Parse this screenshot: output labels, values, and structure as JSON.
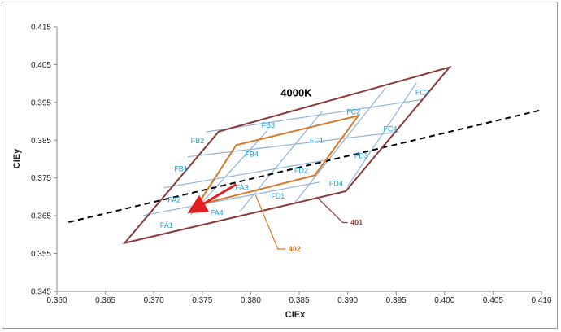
{
  "chart_data": {
    "type": "line",
    "title": "4000K",
    "xlabel": "CIEx",
    "ylabel": "CIEy",
    "xlim": [
      0.36,
      0.41
    ],
    "ylim": [
      0.345,
      0.415
    ],
    "x_ticks": [
      "0.360",
      "0.365",
      "0.370",
      "0.375",
      "0.380",
      "0.385",
      "0.390",
      "0.395",
      "0.400",
      "0.405",
      "0.410"
    ],
    "y_ticks": [
      "0.345",
      "0.355",
      "0.365",
      "0.375",
      "0.385",
      "0.395",
      "0.405",
      "0.415"
    ],
    "grid": false,
    "colors": {
      "outer": "#8b3a3a",
      "inner": "#d9782a",
      "bins": "#8fb3d9",
      "bin_text": "#1aa0d8",
      "planckian": "#000000",
      "arrow": "#e02020"
    },
    "outer_region": {
      "label": "401",
      "points": [
        [
          0.367,
          0.3578
        ],
        [
          0.3898,
          0.3715
        ],
        [
          0.4005,
          0.4043
        ],
        [
          0.3767,
          0.3873
        ]
      ]
    },
    "inner_region": {
      "label": "402",
      "points": [
        [
          0.3745,
          0.3678
        ],
        [
          0.3866,
          0.3757
        ],
        [
          0.3911,
          0.3915
        ],
        [
          0.3785,
          0.3837
        ]
      ]
    },
    "planckian_locus": {
      "points": [
        [
          0.3612,
          0.3633
        ],
        [
          0.41,
          0.393
        ]
      ]
    },
    "bin_lines": [
      [
        [
          0.3689,
          0.3651
        ],
        [
          0.3871,
          0.3739
        ]
      ],
      [
        [
          0.371,
          0.3724
        ],
        [
          0.3875,
          0.3796
        ]
      ],
      [
        [
          0.3735,
          0.3806
        ],
        [
          0.3953,
          0.3872
        ]
      ],
      [
        [
          0.3754,
          0.3872
        ],
        [
          0.3978,
          0.3958
        ]
      ],
      [
        [
          0.3738,
          0.3652
        ],
        [
          0.3817,
          0.3875
        ]
      ],
      [
        [
          0.3789,
          0.3662
        ],
        [
          0.3874,
          0.3927
        ]
      ],
      [
        [
          0.3844,
          0.368
        ],
        [
          0.3939,
          0.3988
        ]
      ],
      [
        [
          0.39,
          0.3728
        ],
        [
          0.3971,
          0.4002
        ]
      ]
    ],
    "bins": [
      {
        "label": "FA1",
        "x": 0.3713,
        "y": 0.3625
      },
      {
        "label": "FA2",
        "x": 0.3721,
        "y": 0.3692
      },
      {
        "label": "FA3",
        "x": 0.3791,
        "y": 0.3725
      },
      {
        "label": "FA4",
        "x": 0.3765,
        "y": 0.3658
      },
      {
        "label": "FB1",
        "x": 0.3728,
        "y": 0.3774
      },
      {
        "label": "FB2",
        "x": 0.3745,
        "y": 0.3848
      },
      {
        "label": "FB3",
        "x": 0.3818,
        "y": 0.3889
      },
      {
        "label": "FB4",
        "x": 0.3801,
        "y": 0.3813
      },
      {
        "label": "FC1",
        "x": 0.3868,
        "y": 0.385
      },
      {
        "label": "FC2",
        "x": 0.3906,
        "y": 0.3925
      },
      {
        "label": "FC3",
        "x": 0.3977,
        "y": 0.3977
      },
      {
        "label": "FC4",
        "x": 0.3944,
        "y": 0.388
      },
      {
        "label": "FD1",
        "x": 0.3828,
        "y": 0.3702
      },
      {
        "label": "FD2",
        "x": 0.3852,
        "y": 0.377
      },
      {
        "label": "FD3",
        "x": 0.3914,
        "y": 0.3809
      },
      {
        "label": "FD4",
        "x": 0.3888,
        "y": 0.3735
      }
    ],
    "annotations": [
      {
        "text": "4000K",
        "x": 0.3847,
        "y": 0.3975
      },
      {
        "text": "401",
        "x": 0.3903,
        "y": 0.3632
      },
      {
        "text": "402",
        "x": 0.3839,
        "y": 0.3562
      }
    ]
  }
}
